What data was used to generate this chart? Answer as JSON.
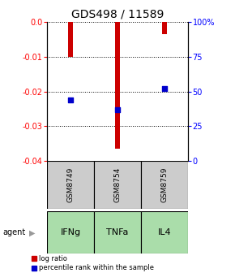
{
  "title": "GDS498 / 11589",
  "samples": [
    "GSM8749",
    "GSM8754",
    "GSM8759"
  ],
  "agents": [
    "IFNg",
    "TNFa",
    "IL4"
  ],
  "log_ratios": [
    -0.01,
    -0.0365,
    -0.0035
  ],
  "percentile_ranks_pct": [
    44,
    37,
    52
  ],
  "ylim_left": [
    -0.04,
    0.0
  ],
  "ylim_right": [
    0.0,
    100.0
  ],
  "yticks_left": [
    0.0,
    -0.01,
    -0.02,
    -0.03,
    -0.04
  ],
  "yticks_right": [
    100,
    75,
    50,
    25,
    0
  ],
  "bar_color": "#cc0000",
  "dot_color": "#0000cc",
  "sample_bg": "#cccccc",
  "agent_bg": "#aaddaa",
  "legend_bar_label": "log ratio",
  "legend_dot_label": "percentile rank within the sample",
  "x_positions": [
    1,
    2,
    3
  ],
  "bar_width": 0.12,
  "dot_size": 18,
  "title_fontsize": 10,
  "tick_fontsize": 7,
  "sample_fontsize": 6.5,
  "agent_fontsize": 8,
  "legend_fontsize": 6
}
